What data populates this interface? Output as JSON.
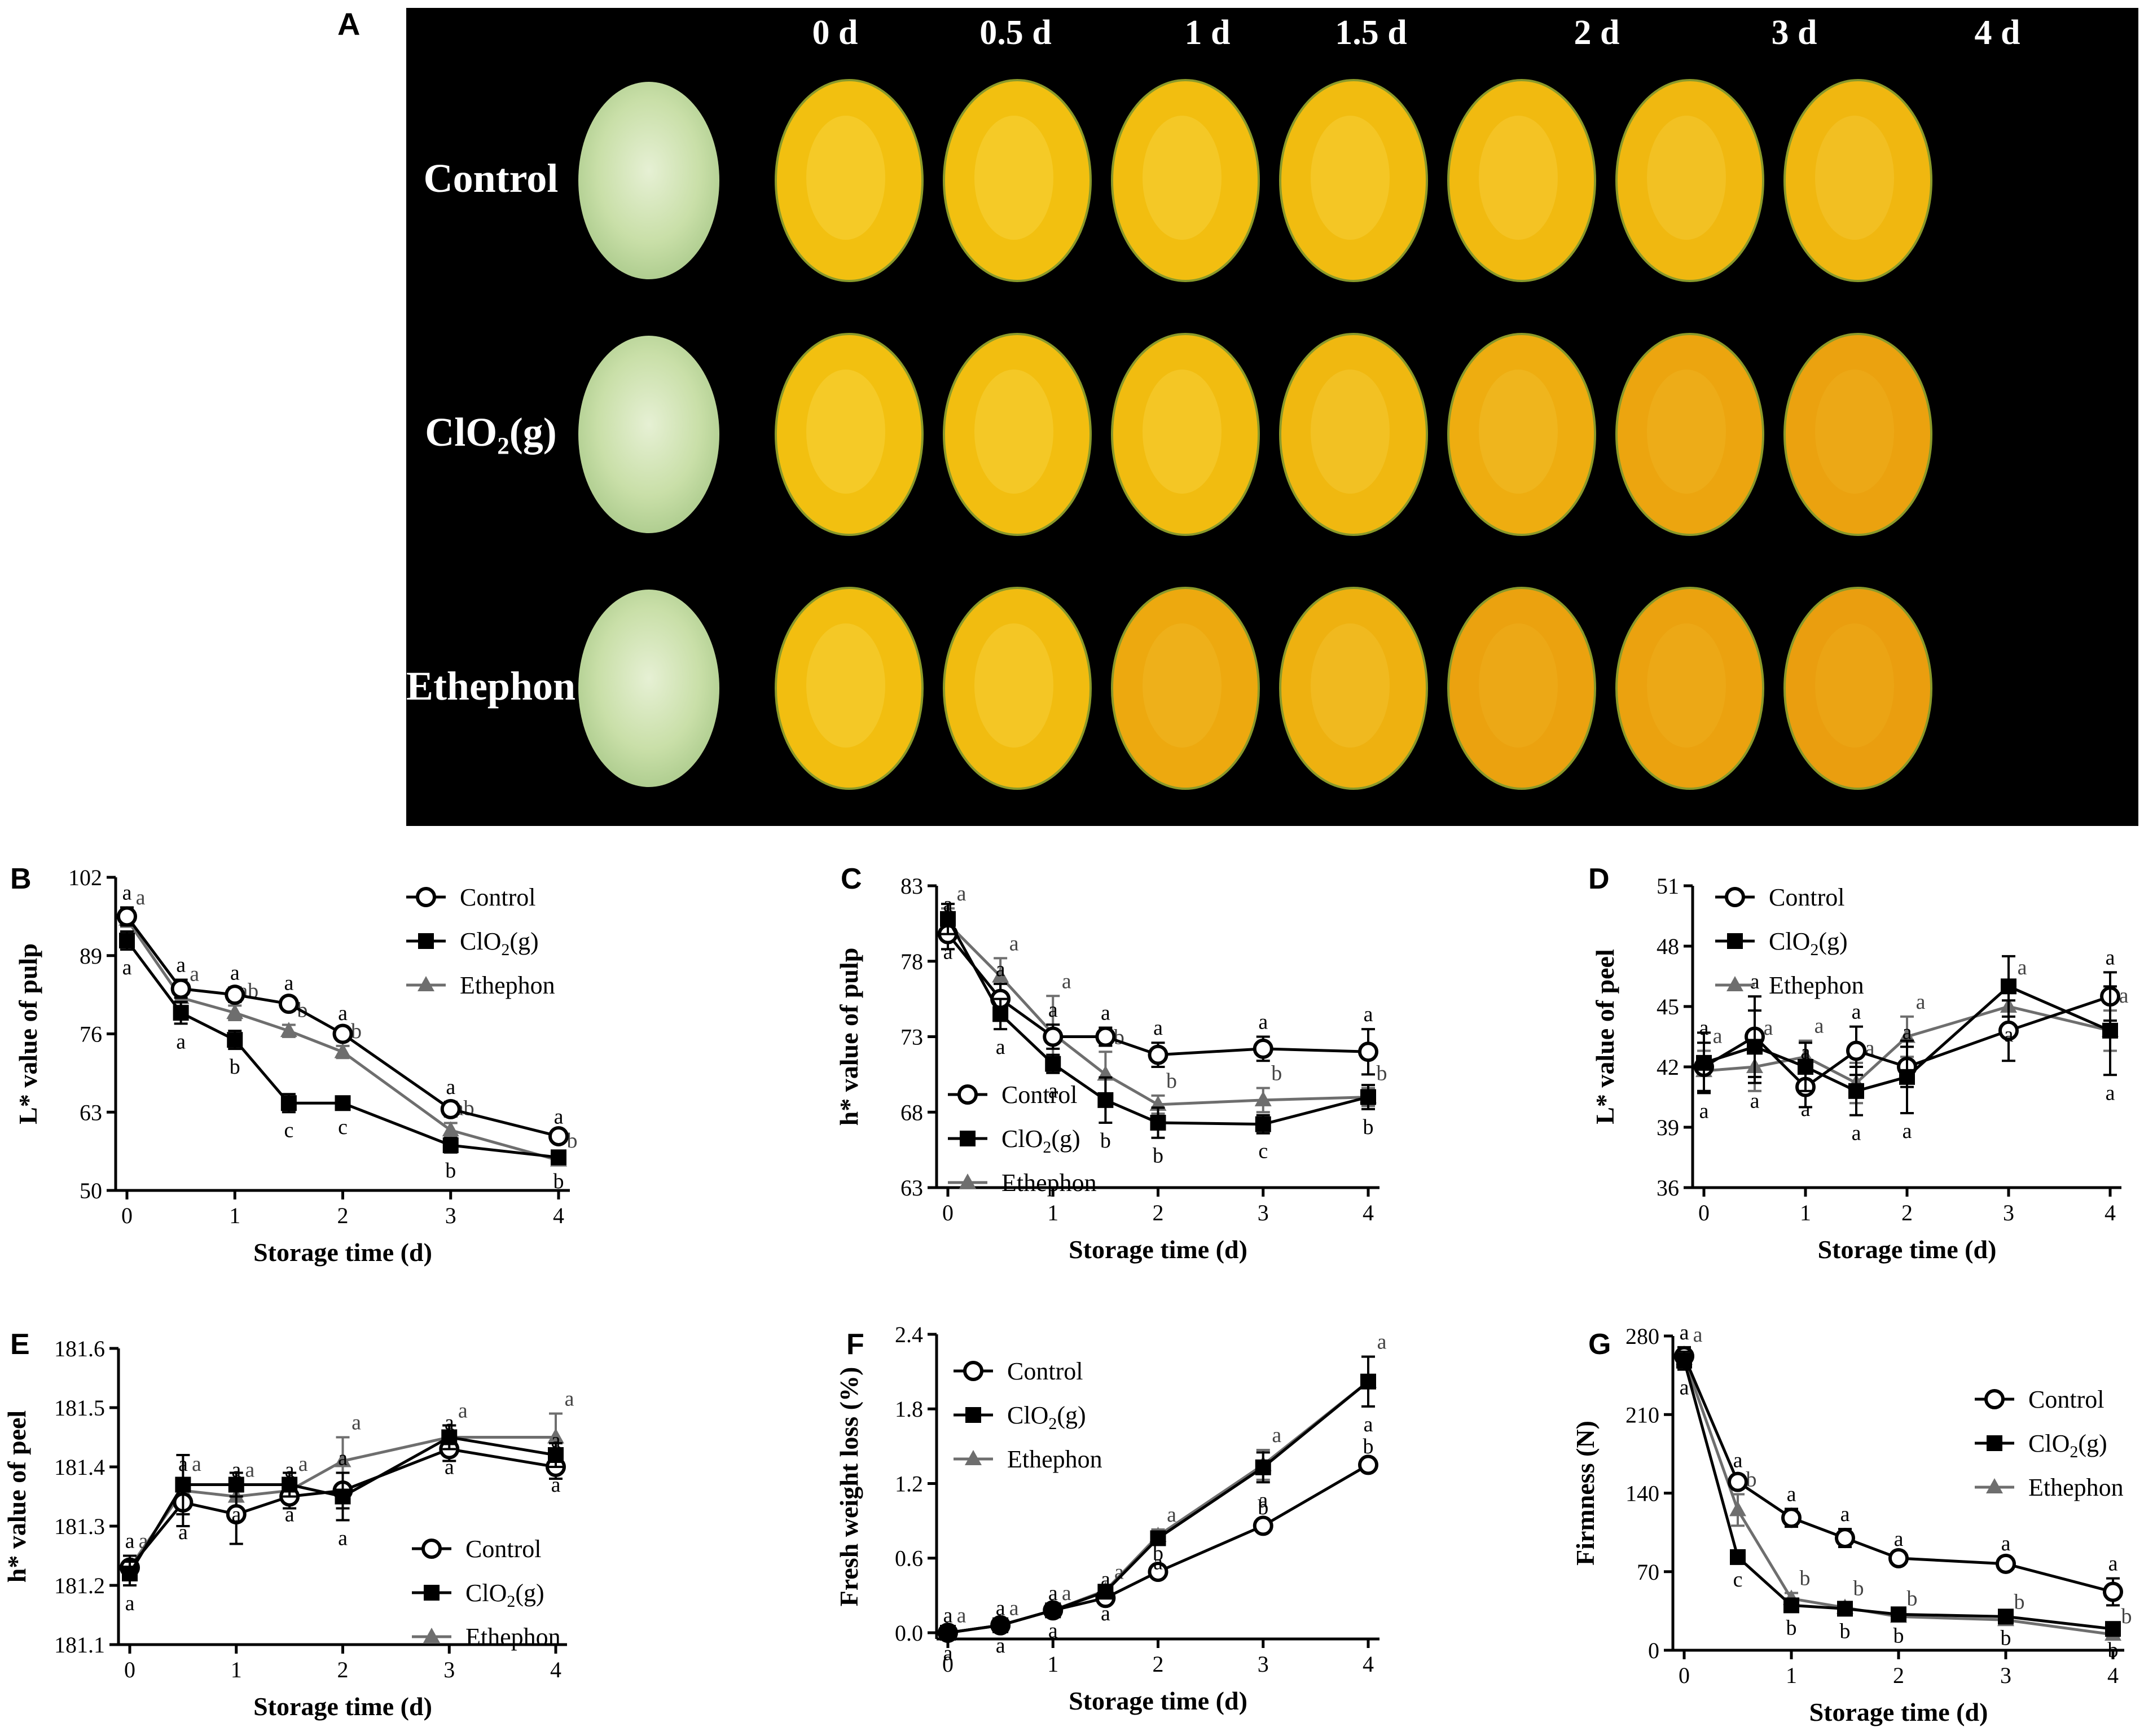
{
  "colors": {
    "control": "#000000",
    "clo2": "#000000",
    "ethephon": "#6e6e6e",
    "photo_bg": "#000000",
    "fruit_yellow": "#f2c010",
    "fruit_orange": "#e99a0f",
    "peel_green": "#cfe3b1"
  },
  "panel_a": {
    "letter": "A",
    "days": [
      "0 d",
      "0.5 d",
      "1 d",
      "1.5 d",
      "2 d",
      "3 d",
      "4 d"
    ],
    "rows": [
      {
        "label": "Control",
        "hue": [
          0.0,
          0.0,
          0.05,
          0.1,
          0.15,
          0.2,
          0.25
        ]
      },
      {
        "label": "ClO₂(g)",
        "hue": [
          0.0,
          0.05,
          0.1,
          0.2,
          0.5,
          0.7,
          0.8
        ]
      },
      {
        "label": "Ethephon",
        "hue": [
          0.05,
          0.1,
          0.6,
          0.4,
          0.8,
          0.8,
          0.9
        ]
      }
    ]
  },
  "legend_labels": {
    "control": "Control",
    "clo2_main": "ClO",
    "clo2_sub": "2",
    "clo2_tail": "(g)",
    "ethephon": "Ethephon"
  },
  "chart_data": [
    {
      "letter": "B",
      "type": "line",
      "xlabel": "Storage time (d)",
      "ylabel": "L* value of pulp",
      "x": [
        0,
        0.5,
        1,
        1.5,
        2,
        3,
        4
      ],
      "xticks": [
        "0",
        "1",
        "2",
        "3",
        "4"
      ],
      "xtick_values": [
        0,
        1,
        2,
        3,
        4
      ],
      "ylim": [
        50,
        102
      ],
      "yticks": [
        "50",
        "63",
        "76",
        "89",
        "102"
      ],
      "ytick_values": [
        50,
        63,
        76,
        89,
        102
      ],
      "series": [
        {
          "name": "Control",
          "values": [
            95.5,
            83.5,
            82.5,
            81.0,
            76.0,
            63.5,
            59.0
          ],
          "err": [
            1.5,
            1.5,
            1.2,
            1.0,
            1.0,
            1.2,
            0.8
          ],
          "letters": [
            "a",
            "a",
            "a",
            "a",
            "a",
            "a",
            "a"
          ]
        },
        {
          "name": "ClO₂(g)",
          "values": [
            91.5,
            79.5,
            75.0,
            64.5,
            64.5,
            57.5,
            55.5
          ],
          "err": [
            1.5,
            1.8,
            1.5,
            1.5,
            1.0,
            1.2,
            1.0
          ],
          "letters": [
            "a",
            "a",
            "b",
            "c",
            "c",
            "b",
            "b"
          ]
        },
        {
          "name": "Ethephon",
          "values": [
            95.0,
            82.0,
            79.5,
            76.5,
            73.0,
            60.0,
            55.0
          ],
          "err": [
            1.2,
            1.5,
            1.2,
            1.0,
            1.0,
            1.2,
            0.8
          ],
          "letters": [
            "a",
            "a",
            "ab",
            "b",
            "b",
            "ab",
            "b"
          ]
        }
      ],
      "legend_pos": "top-right"
    },
    {
      "letter": "C",
      "type": "line",
      "xlabel": "Storage time (d)",
      "ylabel": "h* value of pulp",
      "x": [
        0,
        0.5,
        1,
        1.5,
        2,
        3,
        4
      ],
      "xticks": [
        "0",
        "1",
        "2",
        "3",
        "4"
      ],
      "xtick_values": [
        0,
        1,
        2,
        3,
        4
      ],
      "ylim": [
        63,
        83
      ],
      "yticks": [
        "63",
        "68",
        "73",
        "78",
        "83"
      ],
      "ytick_values": [
        63,
        68,
        73,
        78,
        83
      ],
      "series": [
        {
          "name": "Control",
          "values": [
            79.8,
            75.5,
            73.0,
            73.0,
            71.8,
            72.2,
            72.0
          ],
          "err": [
            1.0,
            1.0,
            0.8,
            0.6,
            0.8,
            0.8,
            1.5
          ],
          "letters": [
            "a",
            "a",
            "a",
            "a",
            "a",
            "a",
            "a"
          ]
        },
        {
          "name": "ClO₂(g)",
          "values": [
            80.8,
            74.5,
            71.2,
            68.8,
            67.3,
            67.2,
            69.0
          ],
          "err": [
            1.0,
            1.0,
            0.6,
            1.5,
            1.0,
            0.6,
            0.8
          ],
          "letters": [
            "a",
            "a",
            "a",
            "b",
            "b",
            "c",
            "b"
          ]
        },
        {
          "name": "Ethephon",
          "values": [
            80.5,
            77.0,
            73.2,
            70.5,
            68.5,
            68.8,
            69.0
          ],
          "err": [
            1.0,
            1.2,
            2.5,
            1.5,
            0.6,
            0.8,
            0.6
          ],
          "letters": [
            "a",
            "a",
            "a",
            "b",
            "b",
            "b",
            "b"
          ]
        }
      ],
      "legend_pos": "lower-left"
    },
    {
      "letter": "D",
      "type": "line",
      "xlabel": "Storage time (d)",
      "ylabel": "L* value of peel",
      "x": [
        0,
        0.5,
        1,
        1.5,
        2,
        3,
        4
      ],
      "xticks": [
        "0",
        "1",
        "2",
        "3",
        "4"
      ],
      "xtick_values": [
        0,
        1,
        2,
        3,
        4
      ],
      "ylim": [
        36,
        51
      ],
      "yticks": [
        "36",
        "39",
        "42",
        "45",
        "48",
        "51"
      ],
      "ytick_values": [
        36,
        39,
        42,
        45,
        48,
        51
      ],
      "series": [
        {
          "name": "Control",
          "values": [
            42.0,
            43.5,
            41.0,
            42.8,
            42.0,
            43.8,
            45.5
          ],
          "err": [
            1.2,
            2.0,
            1.0,
            1.2,
            1.0,
            1.5,
            1.2
          ],
          "letters": [
            "a",
            "a",
            "a",
            "a",
            "a",
            "a",
            "a"
          ]
        },
        {
          "name": "ClO₂(g)",
          "values": [
            42.2,
            43.0,
            42.0,
            40.8,
            41.5,
            46.0,
            43.8
          ],
          "err": [
            1.5,
            1.8,
            1.2,
            1.2,
            1.8,
            1.5,
            2.2
          ],
          "letters": [
            "a",
            "a",
            "a",
            "a",
            "a",
            "a",
            "a"
          ]
        },
        {
          "name": "Ethephon",
          "values": [
            41.8,
            42.0,
            42.5,
            41.2,
            43.5,
            45.0,
            43.8
          ],
          "err": [
            1.0,
            1.2,
            0.8,
            1.0,
            1.0,
            1.2,
            1.0
          ],
          "letters": [
            "a",
            "a",
            "a",
            "a",
            "a",
            "a",
            "a"
          ]
        }
      ],
      "legend_pos": "top-left"
    },
    {
      "letter": "E",
      "type": "line",
      "xlabel": "Storage time (d)",
      "ylabel": "h* value of peel",
      "x": [
        0,
        0.5,
        1,
        1.5,
        2,
        3,
        4
      ],
      "xticks": [
        "0",
        "1",
        "2",
        "3",
        "4"
      ],
      "xtick_values": [
        0,
        1,
        2,
        3,
        4
      ],
      "ylim": [
        181.1,
        181.6
      ],
      "yticks": [
        "181.1",
        "181.2",
        "181.3",
        "181.4",
        "181.5",
        "181.6"
      ],
      "ytick_values": [
        181.1,
        181.2,
        181.3,
        181.4,
        181.5,
        181.6
      ],
      "series": [
        {
          "name": "Control",
          "values": [
            181.23,
            181.34,
            181.32,
            181.35,
            181.36,
            181.43,
            181.4
          ],
          "err": [
            0.02,
            0.04,
            0.05,
            0.02,
            0.03,
            0.02,
            0.02
          ],
          "letters": [
            "a",
            "a",
            "a",
            "a",
            "a",
            "a",
            "a"
          ]
        },
        {
          "name": "ClO₂(g)",
          "values": [
            181.22,
            181.37,
            181.37,
            181.37,
            181.35,
            181.45,
            181.42
          ],
          "err": [
            0.02,
            0.05,
            0.02,
            0.02,
            0.04,
            0.02,
            0.02
          ],
          "letters": [
            "a",
            "a",
            "a",
            "a",
            "a",
            "a",
            "a"
          ]
        },
        {
          "name": "Ethephon",
          "values": [
            181.23,
            181.36,
            181.35,
            181.36,
            181.41,
            181.45,
            181.45
          ],
          "err": [
            0.02,
            0.02,
            0.02,
            0.02,
            0.04,
            0.02,
            0.04
          ],
          "letters": [
            "a",
            "a",
            "a",
            "a",
            "a",
            "a",
            "a"
          ]
        }
      ],
      "legend_pos": "bottom-right"
    },
    {
      "letter": "F",
      "type": "line",
      "xlabel": "Storage time (d)",
      "ylabel": "Fresh weight loss (%)",
      "x": [
        0,
        0.5,
        1,
        1.5,
        2,
        3,
        4
      ],
      "xticks": [
        "0",
        "1",
        "2",
        "3",
        "4"
      ],
      "xtick_values": [
        0,
        1,
        2,
        3,
        4
      ],
      "ylim": [
        -0.05,
        2.4
      ],
      "yticks": [
        "0.0",
        "0.6",
        "1.2",
        "1.8",
        "2.4"
      ],
      "ytick_values": [
        0.0,
        0.6,
        1.2,
        1.8,
        2.4
      ],
      "series": [
        {
          "name": "Control",
          "values": [
            0.0,
            0.06,
            0.18,
            0.28,
            0.49,
            0.86,
            1.35
          ],
          "err": [
            0.02,
            0.02,
            0.02,
            0.03,
            0.03,
            0.03,
            0.03
          ],
          "letters": [
            "a",
            "a",
            "a",
            "a",
            "b",
            "b",
            "b"
          ]
        },
        {
          "name": "ClO₂(g)",
          "values": [
            0.0,
            0.06,
            0.18,
            0.33,
            0.76,
            1.33,
            2.02
          ],
          "err": [
            0.02,
            0.02,
            0.02,
            0.03,
            0.05,
            0.12,
            0.2
          ],
          "letters": [
            "a",
            "a",
            "a",
            "a",
            "a",
            "a",
            "a"
          ]
        },
        {
          "name": "Ethephon",
          "values": [
            0.0,
            0.06,
            0.18,
            0.34,
            0.78,
            1.35,
            2.02
          ],
          "err": [
            0.02,
            0.02,
            0.02,
            0.03,
            0.05,
            0.12,
            0.2
          ],
          "letters": [
            "a",
            "a",
            "a",
            "a",
            "a",
            "a",
            "a"
          ]
        }
      ],
      "legend_pos": "top-left"
    },
    {
      "letter": "G",
      "type": "line",
      "xlabel": "Storage time (d)",
      "ylabel": "Firmness (N)",
      "x": [
        0,
        0.5,
        1,
        1.5,
        2,
        3,
        4
      ],
      "xticks": [
        "0",
        "1",
        "2",
        "3",
        "4"
      ],
      "xtick_values": [
        0,
        1,
        2,
        3,
        4
      ],
      "ylim": [
        0,
        280
      ],
      "yticks": [
        "0",
        "70",
        "140",
        "210",
        "280"
      ],
      "ytick_values": [
        0,
        70,
        140,
        210,
        280
      ],
      "series": [
        {
          "name": "Control",
          "values": [
            262,
            150,
            118,
            100,
            82,
            77,
            52
          ],
          "err": [
            8,
            6,
            8,
            8,
            4,
            5,
            12
          ],
          "letters": [
            "a",
            "a",
            "a",
            "a",
            "a",
            "a",
            "a"
          ]
        },
        {
          "name": "ClO₂(g)",
          "values": [
            258,
            83,
            40,
            37,
            32,
            30,
            19
          ],
          "err": [
            8,
            4,
            4,
            4,
            3,
            3,
            3
          ],
          "letters": [
            "a",
            "c",
            "b",
            "b",
            "b",
            "b",
            "b"
          ]
        },
        {
          "name": "Ethephon",
          "values": [
            260,
            125,
            46,
            38,
            30,
            27,
            14
          ],
          "err": [
            8,
            14,
            5,
            4,
            3,
            3,
            3
          ],
          "letters": [
            "a",
            "b",
            "b",
            "b",
            "b",
            "b",
            "b"
          ]
        }
      ],
      "legend_pos": "top-right"
    }
  ]
}
